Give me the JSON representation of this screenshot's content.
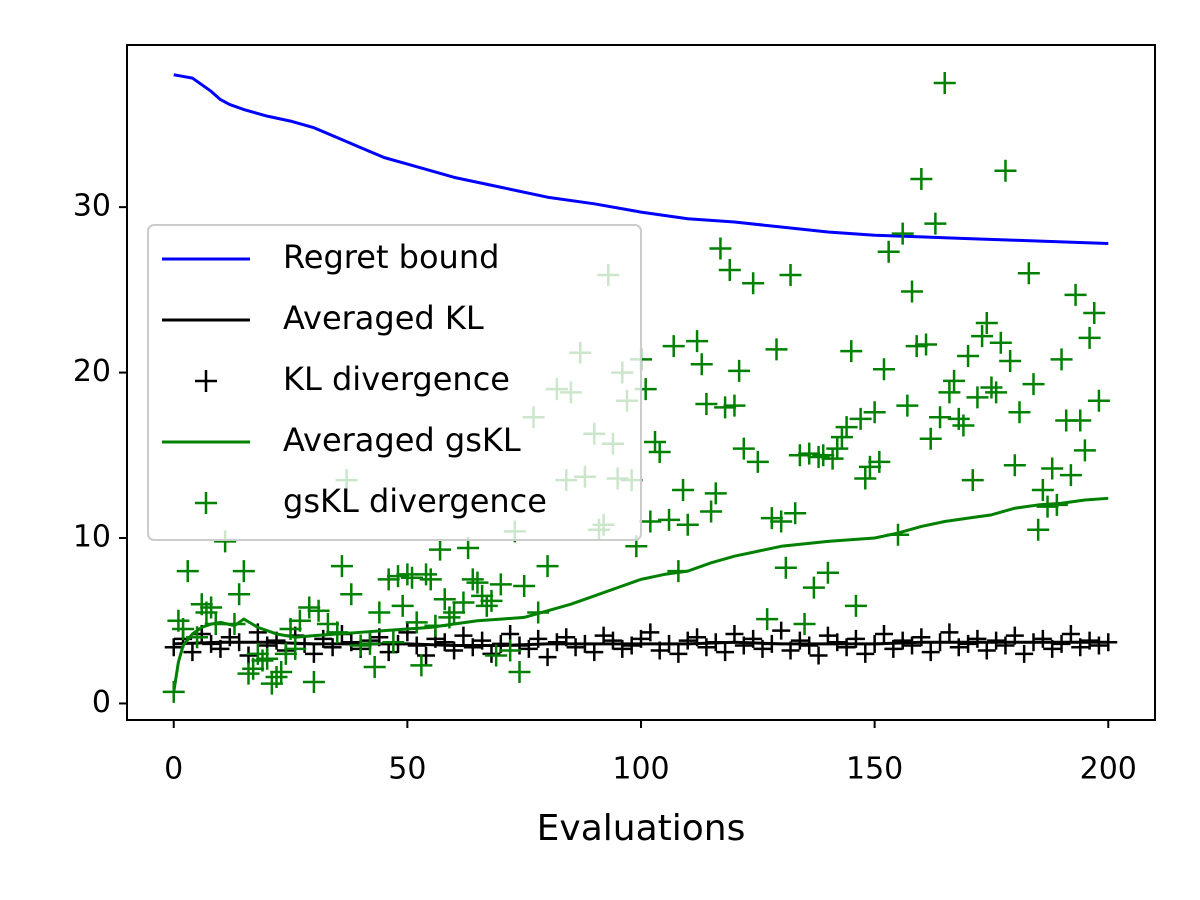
{
  "chart_data": {
    "type": "line",
    "xlabel": "Evaluations",
    "xlim": [
      -10,
      210
    ],
    "ylim": [
      -1,
      39.8
    ],
    "xticks": [
      0,
      50,
      100,
      150,
      200
    ],
    "yticks": [
      0,
      10,
      20,
      30
    ],
    "legend_loc": "center left",
    "series": [
      {
        "name": "Regret bound",
        "type": "line",
        "color": "#0000ff",
        "x": [
          0,
          2,
          4,
          6,
          8,
          10,
          12,
          15,
          20,
          25,
          30,
          35,
          40,
          45,
          50,
          60,
          70,
          80,
          90,
          100,
          110,
          120,
          130,
          140,
          150,
          160,
          170,
          180,
          190,
          200
        ],
        "values": [
          38,
          37.9,
          37.8,
          37.4,
          37,
          36.5,
          36.2,
          35.9,
          35.5,
          35.2,
          34.8,
          34.2,
          33.6,
          33.0,
          32.6,
          31.8,
          31.2,
          30.6,
          30.2,
          29.7,
          29.3,
          29.1,
          28.8,
          28.5,
          28.3,
          28.2,
          28.1,
          28.0,
          27.9,
          27.8
        ]
      },
      {
        "name": "Averaged KL",
        "type": "line",
        "color": "#000000",
        "x": [
          0,
          10,
          20,
          30,
          40,
          50,
          60,
          70,
          80,
          90,
          100,
          110,
          120,
          130,
          140,
          150,
          160,
          170,
          180,
          190,
          200
        ],
        "values": [
          3.6,
          3.7,
          3.7,
          3.6,
          3.6,
          3.6,
          3.5,
          3.5,
          3.6,
          3.6,
          3.6,
          3.6,
          3.7,
          3.6,
          3.6,
          3.6,
          3.7,
          3.7,
          3.7,
          3.7,
          3.7
        ]
      },
      {
        "name": "KL divergence",
        "type": "marker",
        "color": "#000000",
        "x": [
          0,
          2,
          4,
          6,
          8,
          10,
          12,
          14,
          16,
          18,
          20,
          22,
          24,
          26,
          28,
          30,
          32,
          34,
          36,
          38,
          40,
          42,
          44,
          46,
          48,
          50,
          52,
          54,
          56,
          58,
          60,
          62,
          64,
          66,
          68,
          70,
          72,
          74,
          76,
          78,
          80,
          82,
          84,
          86,
          88,
          90,
          92,
          94,
          96,
          98,
          100,
          102,
          104,
          106,
          108,
          110,
          112,
          114,
          116,
          118,
          120,
          122,
          124,
          126,
          128,
          130,
          132,
          134,
          136,
          138,
          140,
          142,
          144,
          146,
          148,
          150,
          152,
          154,
          156,
          158,
          160,
          162,
          164,
          166,
          168,
          170,
          172,
          174,
          176,
          178,
          180,
          182,
          184,
          186,
          188,
          190,
          192,
          194,
          196,
          198,
          200
        ],
        "values": [
          3.4,
          3.9,
          3.1,
          4.2,
          3.6,
          3.3,
          4.0,
          3.7,
          2.9,
          4.3,
          3.5,
          3.8,
          3.2,
          4.1,
          3.6,
          3.0,
          3.9,
          3.4,
          4.2,
          3.7,
          3.3,
          3.8,
          4.0,
          3.1,
          3.6,
          4.3,
          3.5,
          2.9,
          3.9,
          3.7,
          3.2,
          4.1,
          3.4,
          3.8,
          3.0,
          3.6,
          4.2,
          3.5,
          3.3,
          3.9,
          2.8,
          3.7,
          4.0,
          3.4,
          3.6,
          3.1,
          4.1,
          3.8,
          3.3,
          3.5,
          3.9,
          4.3,
          3.2,
          3.6,
          3.0,
          3.8,
          4.0,
          3.4,
          3.7,
          3.1,
          4.2,
          3.5,
          3.9,
          3.3,
          3.6,
          4.4,
          3.2,
          3.8,
          3.5,
          2.9,
          4.1,
          3.7,
          3.4,
          3.9,
          3.0,
          3.6,
          4.2,
          3.3,
          3.8,
          3.5,
          4.0,
          3.1,
          3.7,
          4.3,
          3.4,
          3.6,
          3.9,
          3.2,
          3.8,
          3.5,
          4.1,
          3.0,
          3.7,
          3.9,
          3.3,
          3.6,
          4.2,
          3.4,
          3.8,
          3.5,
          3.7
        ]
      },
      {
        "name": "Averaged gsKL",
        "type": "line",
        "color": "#008000",
        "x": [
          0,
          1,
          2,
          4,
          6,
          8,
          10,
          13,
          15,
          18,
          22,
          26,
          30,
          35,
          40,
          45,
          50,
          55,
          60,
          65,
          70,
          75,
          80,
          85,
          90,
          95,
          100,
          105,
          110,
          115,
          120,
          125,
          130,
          140,
          150,
          155,
          160,
          165,
          170,
          175,
          180,
          185,
          190,
          195,
          200
        ],
        "values": [
          0.7,
          2.5,
          3.5,
          4.2,
          4.6,
          4.8,
          4.9,
          4.7,
          5.1,
          4.6,
          4.2,
          4.0,
          4.1,
          4.2,
          4.3,
          4.4,
          4.5,
          4.6,
          4.8,
          5.0,
          5.1,
          5.2,
          5.6,
          6.0,
          6.5,
          7.0,
          7.5,
          7.8,
          8.0,
          8.5,
          8.9,
          9.2,
          9.5,
          9.8,
          10.0,
          10.3,
          10.7,
          11.0,
          11.2,
          11.4,
          11.8,
          12.0,
          12.1,
          12.3,
          12.4
        ]
      },
      {
        "name": "gsKL divergence",
        "type": "marker",
        "color": "#008000",
        "x": [
          0,
          1,
          2,
          3,
          5,
          6,
          7,
          8,
          9,
          11,
          13,
          14,
          15,
          16,
          17,
          18,
          19,
          20,
          21,
          22,
          23,
          24,
          25,
          26,
          27,
          29,
          30,
          31,
          33,
          35,
          36,
          37,
          38,
          40,
          42,
          43,
          44,
          46,
          47,
          48,
          49,
          50,
          51,
          52,
          53,
          54,
          55,
          56,
          57,
          58,
          59,
          60,
          62,
          63,
          64,
          65,
          66,
          67,
          68,
          69,
          70,
          72,
          73,
          74,
          75,
          77,
          78,
          80,
          82,
          84,
          85,
          87,
          88,
          90,
          91,
          92,
          93,
          94,
          95,
          96,
          97,
          98,
          99,
          100,
          101,
          102,
          103,
          104,
          106,
          107,
          108,
          109,
          110,
          112,
          113,
          114,
          115,
          116,
          117,
          118,
          119,
          120,
          121,
          122,
          124,
          125,
          127,
          128,
          129,
          130,
          131,
          132,
          133,
          134,
          135,
          136,
          137,
          138,
          139,
          140,
          141,
          142,
          143,
          144,
          145,
          146,
          147,
          148,
          149,
          150,
          151,
          152,
          153,
          155,
          156,
          157,
          158,
          159,
          160,
          161,
          162,
          163,
          164,
          165,
          166,
          167,
          168,
          169,
          170,
          171,
          172,
          173,
          174,
          175,
          176,
          177,
          178,
          179,
          180,
          181,
          183,
          184,
          185,
          186,
          187,
          188,
          189,
          190,
          191,
          192,
          193,
          194,
          195,
          196,
          197,
          198
        ],
        "values": [
          0.7,
          5,
          4.5,
          8,
          4,
          6,
          5.5,
          5.8,
          4.8,
          9.8,
          4.8,
          6.6,
          8,
          1.8,
          2.1,
          3,
          2.6,
          2.7,
          1.2,
          1.6,
          1.9,
          3,
          4.5,
          3.3,
          5,
          5.8,
          1.3,
          5.6,
          4.8,
          4.3,
          8.3,
          13.5,
          6.6,
          3.5,
          3.6,
          2.2,
          5.5,
          7.5,
          3.7,
          7.7,
          5.9,
          7.8,
          7.6,
          4.9,
          2.3,
          7.8,
          7.5,
          4.7,
          9.3,
          6.3,
          5.2,
          5.5,
          6.1,
          9.4,
          7.5,
          7.3,
          6.5,
          5.9,
          6.2,
          2.9,
          7.2,
          3.2,
          10.4,
          1.9,
          7.1,
          17.3,
          5.5,
          8.3,
          19,
          13.5,
          18.8,
          21.2,
          13.7,
          16.3,
          10.5,
          10.8,
          25.9,
          15.7,
          13.6,
          20,
          18.3,
          13.5,
          9.5,
          20.8,
          19,
          11,
          15.8,
          15.2,
          11.1,
          21.6,
          8,
          12.9,
          10.8,
          21.9,
          20.5,
          18.1,
          11.6,
          12.7,
          27.5,
          17.9,
          26.2,
          18,
          20.1,
          15.4,
          25.4,
          14.6,
          5.1,
          11.2,
          21.4,
          11,
          8.2,
          25.9,
          11.5,
          15,
          4.8,
          15.1,
          7,
          14.9,
          15,
          7.9,
          14.8,
          15.4,
          16.1,
          16.7,
          21.3,
          5.9,
          17.2,
          13.6,
          14.3,
          17.6,
          14.6,
          20.2,
          27.3,
          10.2,
          28.4,
          18,
          24.9,
          21.6,
          31.7,
          21.7,
          16,
          29,
          17.3,
          37.5,
          18.8,
          19.5,
          17.2,
          16.8,
          21,
          13.5,
          18.5,
          22.2,
          23,
          19.1,
          18.8,
          21.8,
          32.2,
          20.7,
          14.4,
          17.6,
          26,
          19.3,
          10.5,
          12.9,
          11.9,
          14.2,
          12,
          20.8,
          17.1,
          13.8,
          24.7,
          17.1,
          15.3,
          22.1,
          23.6,
          18.3
        ]
      }
    ]
  }
}
